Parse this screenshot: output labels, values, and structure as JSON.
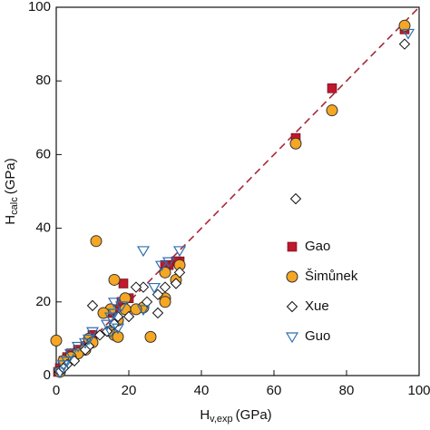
{
  "chart_data": {
    "type": "scatter",
    "x_label": {
      "main": "H",
      "sub": "v,exp",
      "unit": "(GPa)"
    },
    "y_label": {
      "main": "H",
      "sub": "calc",
      "unit": "(GPa)"
    },
    "xlim": [
      0,
      100
    ],
    "ylim": [
      0,
      100
    ],
    "xticks": [
      0,
      20,
      40,
      60,
      80,
      100
    ],
    "yticks": [
      0,
      20,
      40,
      60,
      80,
      100
    ],
    "diagonal": {
      "color": "#a8283a",
      "x": [
        0,
        100
      ],
      "y": [
        0,
        100
      ]
    },
    "legend": "lower right",
    "series": [
      {
        "name": "Gao",
        "marker": "square",
        "color": "#c0182c",
        "x": [
          96,
          76,
          66,
          34,
          33,
          31,
          30,
          20,
          18.5,
          18,
          16,
          15,
          10,
          9,
          8,
          5,
          3,
          2,
          1,
          0.5,
          4,
          6
        ],
        "y": [
          94,
          78,
          64.5,
          31,
          31,
          30,
          30,
          21,
          25,
          20,
          18,
          17,
          11,
          9,
          8,
          6,
          5,
          4,
          2,
          1,
          6,
          7
        ]
      },
      {
        "name": "Šimůnek",
        "marker": "circle",
        "color": "#f5a623",
        "x": [
          96,
          76,
          66,
          34,
          33,
          30,
          30,
          30,
          24,
          22,
          19,
          19,
          17,
          16,
          15,
          15,
          16,
          17,
          11,
          9,
          8,
          6,
          4,
          2,
          0,
          1,
          13,
          26,
          10
        ],
        "y": [
          95,
          72,
          63,
          30,
          26,
          28,
          21,
          20,
          18.5,
          18,
          21,
          18,
          15,
          26,
          18,
          12,
          11,
          10.5,
          36.5,
          10,
          7,
          6,
          5,
          4,
          9.5,
          1,
          17,
          10.5,
          9
        ]
      },
      {
        "name": "Xue",
        "marker": "diamond",
        "color": "#111111",
        "x": [
          96,
          66,
          34,
          33,
          30,
          28,
          28,
          25,
          24,
          22,
          20,
          17,
          16,
          14,
          10,
          9,
          8,
          5,
          3,
          1,
          2,
          12
        ],
        "y": [
          90,
          48,
          28,
          25,
          24,
          22,
          17,
          20,
          24,
          24,
          16,
          16,
          14,
          12,
          19,
          8,
          7,
          4,
          3,
          1,
          2,
          11
        ]
      },
      {
        "name": "Guo",
        "marker": "triangle-down",
        "color": "#2f6fb0",
        "x": [
          97,
          34,
          24,
          31,
          29,
          27,
          24,
          18,
          16,
          15,
          14,
          17,
          15,
          10,
          9,
          8,
          6,
          4,
          2,
          1,
          3,
          16
        ],
        "y": [
          93,
          34,
          34,
          31,
          30,
          24,
          18,
          19,
          17,
          16,
          14,
          13,
          12,
          12,
          10,
          9,
          8,
          6,
          3,
          1,
          4,
          20
        ]
      }
    ]
  }
}
